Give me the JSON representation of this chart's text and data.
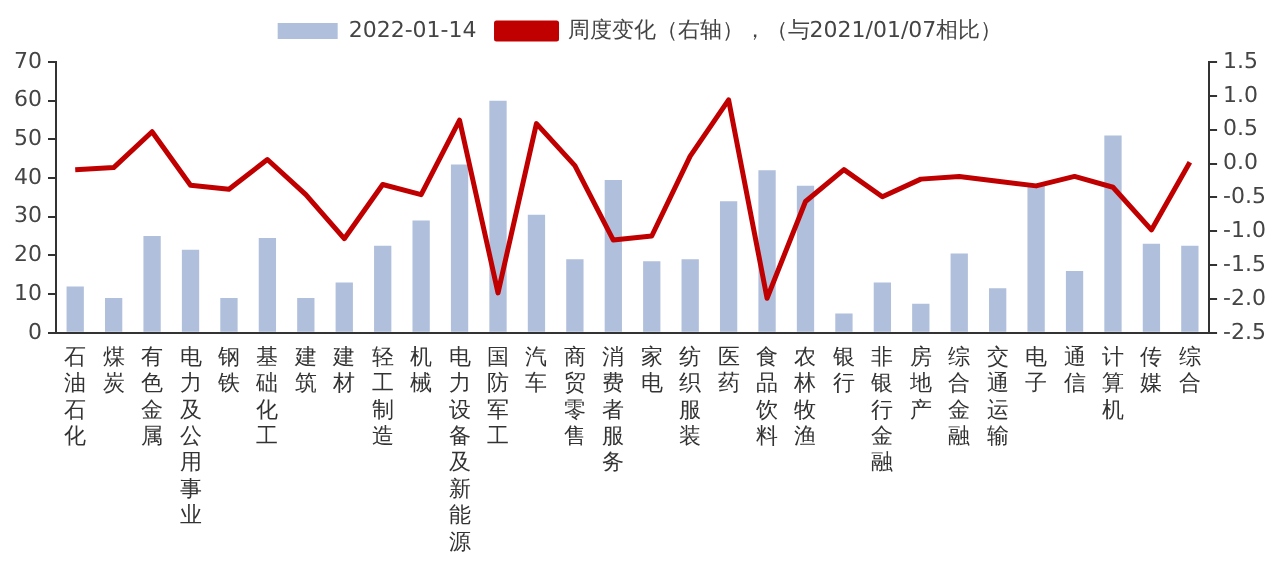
{
  "chart_data": {
    "type": "bar",
    "categories": [
      "石油石化",
      "煤炭",
      "有色金属",
      "电力及公用事业",
      "钢铁",
      "基础化工",
      "建筑",
      "建材",
      "轻工制造",
      "机械",
      "电力设备及新能源",
      "国防军工",
      "汽车",
      "商贸零售",
      "消费者服务",
      "家电",
      "纺织服装",
      "医药",
      "食品饮料",
      "农林牧渔",
      "银行",
      "非银行金融",
      "房地产",
      "综合金融",
      "交通运输",
      "电子",
      "通信",
      "计算机",
      "传媒",
      "综合"
    ],
    "series": [
      {
        "name": "2022-01-14",
        "color": "#b0bfdb",
        "values": [
          12,
          9,
          25,
          21.5,
          9,
          24.5,
          9,
          13,
          22.5,
          29,
          43.5,
          60,
          30.5,
          19,
          39.5,
          18.5,
          19,
          34,
          42,
          38,
          5,
          13,
          7.5,
          20.5,
          11.5,
          38,
          16,
          51,
          23,
          22.5
        ]
      },
      {
        "name": "周度变化（右轴），（与2021/01/07相比）",
        "type": "line",
        "axis": "y2",
        "color": "#c00000",
        "values": [
          -0.09,
          -0.06,
          0.47,
          -0.32,
          -0.38,
          0.06,
          -0.46,
          -1.11,
          -0.31,
          -0.46,
          0.64,
          -1.91,
          0.59,
          -0.03,
          -1.13,
          -1.07,
          0.11,
          0.94,
          -1.99,
          -0.56,
          -0.09,
          -0.49,
          -0.23,
          -0.19,
          -0.26,
          -0.33,
          -0.19,
          -0.35,
          -0.98,
          0.02
        ]
      }
    ],
    "ylim": [
      0,
      70
    ],
    "yticks": [
      0,
      10,
      20,
      30,
      40,
      50,
      60,
      70
    ],
    "y2lim": [
      -2.5,
      1.5
    ],
    "y2ticks": [
      {
        "value": 1.5,
        "label": "1.5"
      },
      {
        "value": 1,
        "label": "1.0"
      },
      {
        "value": 0.5,
        "label": "0.5"
      },
      {
        "value": 0,
        "label": "0.0"
      },
      {
        "value": -0.5,
        "label": "-0.5"
      },
      {
        "value": -1,
        "label": "-1.0"
      },
      {
        "value": -1.5,
        "label": "-1.5"
      },
      {
        "value": -2,
        "label": "-2.0"
      },
      {
        "value": -2.5,
        "label": "-2.5"
      }
    ],
    "grid": false,
    "legend": "top",
    "marker": "none",
    "line_style": "solid"
  }
}
